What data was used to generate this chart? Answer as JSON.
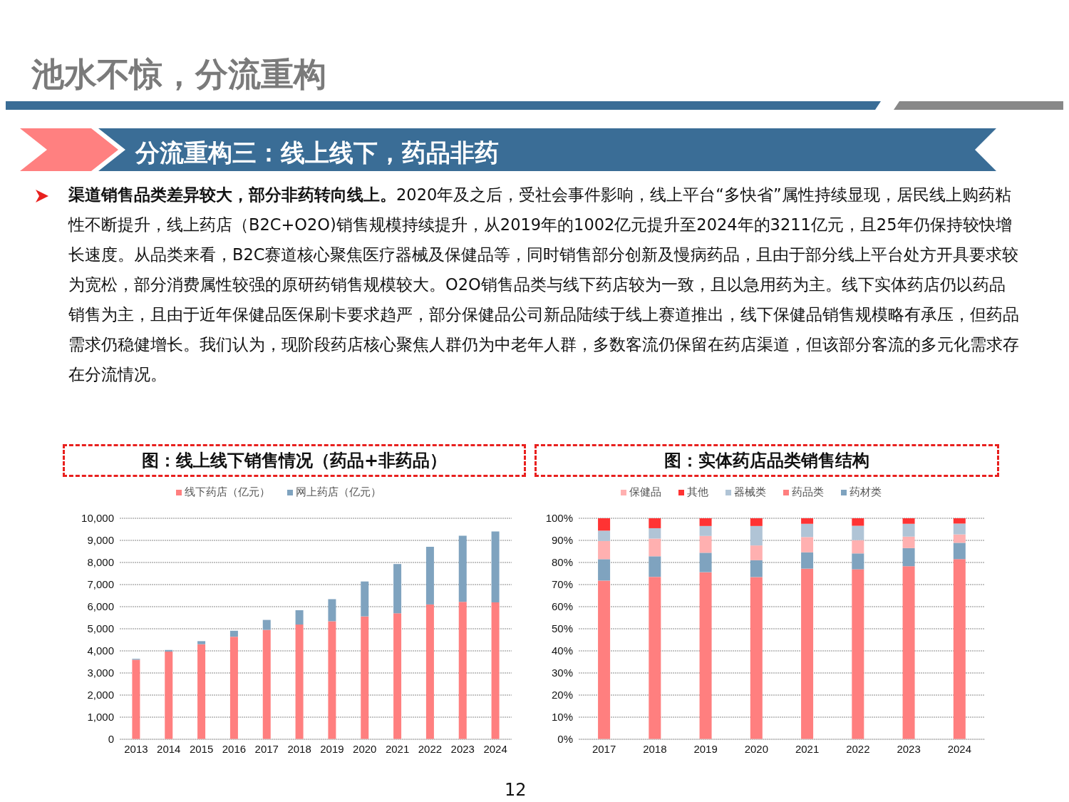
{
  "chart_data": [
    {
      "type": "bar",
      "title": "图：线上线下销售情况（药品+非药品）",
      "stacked": true,
      "grid": "y",
      "legend": "top",
      "annotations": [
        "池水不惊，分流重构",
        "分流重构三：线上线下，药品非药",
        "渠道销售品类差异较大，部分非药转向线上。",
        "2020年及之后，受社会事件影响，线上平台“多快省”属性持续显现，居民线上购药粘性不断提升，线上药店（B2C+O2O)销售规模持续提升，从2019年的1002亿元提升至2024年的3211亿元，且25年仍保持较快增长速度。从品类来看，B2C赛道核心聚焦医疗器械及保健品等，同时销售部分创新及慢病药品，且由于部分线上平台处方开具要求较为宽松，部分消费属性较强的原研药销售规模较大。O2O销售品类与线下药店较为一致，且以急用药为主。线下实体药店仍以药品销售为主，且由于近年保健品医保刷卡要求趋严，部分保健品公司新品陆续于线上赛道推出，线下保健品销售规模略有承压，但药品需求仍稳健增长。我们认为，现阶段药店核心聚焦人群仍为中老年人群，多数客流仍保留在药店渠道，但该部分客流的多元化需求存在分流情况。",
        "12"
      ],
      "categories": [
        "2013",
        "2014",
        "2015",
        "2016",
        "2017",
        "2018",
        "2019",
        "2020",
        "2021",
        "2022",
        "2023",
        "2024"
      ],
      "ylim": [
        0,
        10000
      ],
      "yticks": [
        {
          "value": 0,
          "label": "0"
        },
        {
          "value": 1000,
          "label": "1,000"
        },
        {
          "value": 2000,
          "label": "2,000"
        },
        {
          "value": 3000,
          "label": "3,000"
        },
        {
          "value": 4000,
          "label": "4,000"
        },
        {
          "value": 5000,
          "label": "5,000"
        },
        {
          "value": 6000,
          "label": "6,000"
        },
        {
          "value": 7000,
          "label": "7,000"
        },
        {
          "value": 8000,
          "label": "8,000"
        },
        {
          "value": 9000,
          "label": "9,000"
        },
        {
          "value": 10000,
          "label": "10,000"
        }
      ],
      "series": [
        {
          "name": "线下药店（亿元）",
          "color": "#ff7f7f",
          "values": [
            3600,
            3970,
            4300,
            4640,
            4950,
            5190,
            5340,
            5560,
            5700,
            6100,
            6220,
            6190
          ]
        },
        {
          "name": "网上药店（亿元）",
          "color": "#7fa3bf",
          "values": [
            40,
            70,
            140,
            270,
            450,
            650,
            1000,
            1580,
            2230,
            2610,
            2990,
            3210
          ]
        }
      ]
    },
    {
      "type": "bar",
      "title": "图：实体药店品类销售结构",
      "stacked": true,
      "grid": "y",
      "legend": "top",
      "categories": [
        "2017",
        "2018",
        "2019",
        "2020",
        "2021",
        "2022",
        "2023",
        "2024"
      ],
      "ylim": [
        0,
        100
      ],
      "yticks": [
        {
          "value": 0,
          "label": "0%"
        },
        {
          "value": 10,
          "label": "10%"
        },
        {
          "value": 20,
          "label": "20%"
        },
        {
          "value": 30,
          "label": "30%"
        },
        {
          "value": 40,
          "label": "40%"
        },
        {
          "value": 50,
          "label": "50%"
        },
        {
          "value": 60,
          "label": "60%"
        },
        {
          "value": 70,
          "label": "70%"
        },
        {
          "value": 80,
          "label": "80%"
        },
        {
          "value": 90,
          "label": "90%"
        },
        {
          "value": 100,
          "label": "100%"
        }
      ],
      "series": [
        {
          "name": "药品类",
          "color": "#ff7f7f",
          "values": [
            71.8,
            73.5,
            75.6,
            73.4,
            77.2,
            76.9,
            78.3,
            81.5
          ]
        },
        {
          "name": "药材类",
          "color": "#7fa3bf",
          "values": [
            9.7,
            9.3,
            8.8,
            7.6,
            7.4,
            7.2,
            8.2,
            7.4
          ]
        },
        {
          "name": "保健品",
          "color": "#ffb0b0",
          "values": [
            8.2,
            8.0,
            7.6,
            6.7,
            6.9,
            6.0,
            5.2,
            3.8
          ]
        },
        {
          "name": "器械类",
          "color": "#b0c4d6",
          "values": [
            4.7,
            4.7,
            4.5,
            8.8,
            6.0,
            6.5,
            5.8,
            4.9
          ]
        },
        {
          "name": "其他",
          "color": "#ff3333",
          "values": [
            5.6,
            4.5,
            3.5,
            3.5,
            2.5,
            3.4,
            2.5,
            2.4
          ]
        }
      ]
    }
  ]
}
